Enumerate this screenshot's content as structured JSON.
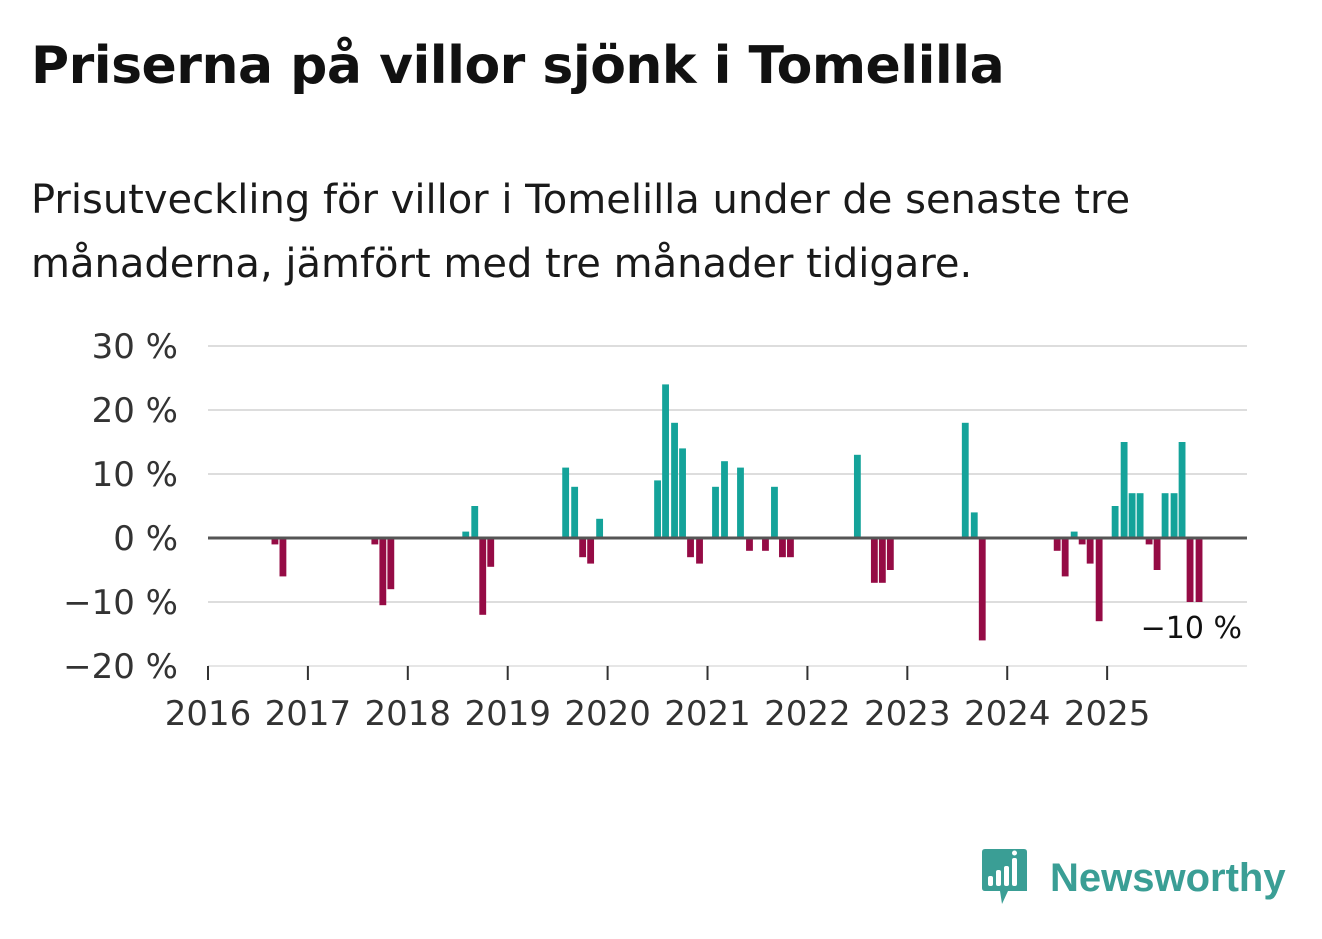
{
  "header": {
    "title": "Priserna på villor sjönk i Tomelilla",
    "subtitle": "Prisutveckling för villor i Tomelilla under de senaste tre månaderna, jämfört med tre månader tidigare."
  },
  "brand": {
    "name": "Newsworthy",
    "icon": "newsworthy-logo-icon"
  },
  "colors": {
    "positive": "#14a39a",
    "negative": "#950b45",
    "zero_line": "#555555",
    "grid": "#dddddd"
  },
  "chart_data": {
    "type": "bar",
    "title": "Priserna på villor sjönk i Tomelilla",
    "subtitle": "Prisutveckling för villor i Tomelilla under de senaste tre månaderna, jämfört med tre månader tidigare.",
    "xlabel": "",
    "ylabel": "",
    "unit": "%",
    "ylim": [
      -20,
      30
    ],
    "xlim": [
      2016.0,
      2026.4
    ],
    "y_ticks": [
      {
        "value": 30,
        "label": "30 %"
      },
      {
        "value": 20,
        "label": "20 %"
      },
      {
        "value": 10,
        "label": "10 %"
      },
      {
        "value": 0,
        "label": "0 %"
      },
      {
        "value": -10,
        "label": "−10 %"
      },
      {
        "value": -20,
        "label": "−20 %"
      }
    ],
    "x_ticks": [
      {
        "value": 2016,
        "label": "2016"
      },
      {
        "value": 2017,
        "label": "2017"
      },
      {
        "value": 2018,
        "label": "2018"
      },
      {
        "value": 2019,
        "label": "2019"
      },
      {
        "value": 2020,
        "label": "2020"
      },
      {
        "value": 2021,
        "label": "2021"
      },
      {
        "value": 2022,
        "label": "2022"
      },
      {
        "value": 2023,
        "label": "2023"
      },
      {
        "value": 2024,
        "label": "2024"
      },
      {
        "value": 2025,
        "label": "2025"
      }
    ],
    "series": [
      {
        "name": "Prisutveckling",
        "x": [
          2016.67,
          2016.75,
          2017.67,
          2017.75,
          2017.83,
          2018.58,
          2018.67,
          2018.75,
          2018.83,
          2019.58,
          2019.67,
          2019.75,
          2019.83,
          2019.92,
          2020.5,
          2020.58,
          2020.67,
          2020.75,
          2020.83,
          2020.92,
          2021.08,
          2021.17,
          2021.33,
          2021.42,
          2021.58,
          2021.67,
          2021.75,
          2021.83,
          2022.5,
          2022.67,
          2022.75,
          2022.83,
          2023.58,
          2023.67,
          2023.75,
          2024.5,
          2024.58,
          2024.67,
          2024.75,
          2024.83,
          2024.92,
          2025.08,
          2025.17,
          2025.25,
          2025.33,
          2025.42,
          2025.5,
          2025.58,
          2025.67,
          2025.75,
          2025.83,
          2025.92
        ],
        "values": [
          -1,
          -6,
          -1,
          -10.5,
          -8,
          1,
          5,
          -12,
          -4.5,
          11,
          8,
          -3,
          -4,
          3,
          9,
          24,
          18,
          14,
          -3,
          -4,
          8,
          12,
          11,
          -2,
          -2,
          8,
          -3,
          -3,
          13,
          -7,
          -7,
          -5,
          18,
          4,
          -16,
          -2,
          -6,
          1,
          -1,
          -4,
          -13,
          5,
          15,
          7,
          7,
          -1,
          -5,
          7,
          7,
          15,
          -10,
          -10
        ]
      }
    ],
    "annotations": [
      {
        "label": "−10 %"
      }
    ]
  }
}
